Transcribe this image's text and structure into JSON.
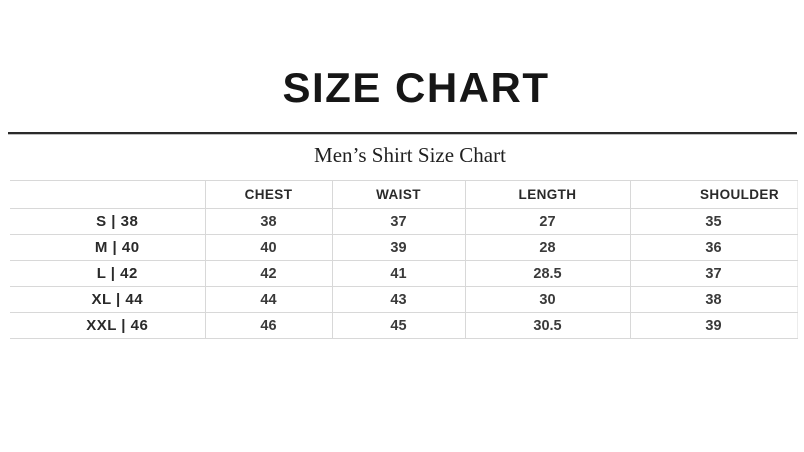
{
  "page": {
    "title": "SIZE CHART",
    "subtitle": "Men’s Shirt Size Chart"
  },
  "size_table": {
    "columns": [
      "",
      "CHEST",
      "WAIST",
      "LENGTH",
      "SHOULDER"
    ],
    "rows": [
      {
        "size": "S | 38",
        "values": [
          "38",
          "37",
          "27",
          "35"
        ]
      },
      {
        "size": "M | 40",
        "values": [
          "40",
          "39",
          "28",
          "36"
        ]
      },
      {
        "size": "L | 42",
        "values": [
          "42",
          "41",
          "28.5",
          "37"
        ]
      },
      {
        "size": "XL | 44",
        "values": [
          "44",
          "43",
          "30",
          "38"
        ]
      },
      {
        "size": "XXL | 46",
        "values": [
          "46",
          "45",
          "30.5",
          "39"
        ]
      }
    ]
  },
  "colors": {
    "text_primary": "#161616",
    "text_values": "#3a3a3a",
    "grid_line": "#d8d8d8",
    "rule_dark": "#2a2a2a",
    "rule_light": "#bfbfbf",
    "background": "#ffffff"
  }
}
